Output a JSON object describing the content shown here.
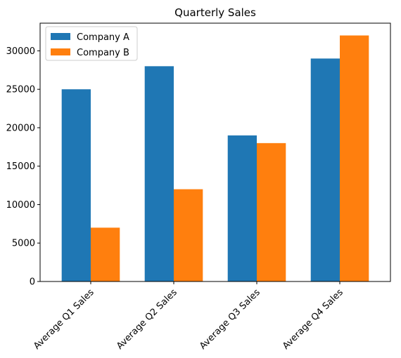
{
  "chart_data": {
    "type": "bar",
    "title": "Quarterly Sales",
    "xlabel": "",
    "ylabel": "",
    "categories": [
      "Average Q1 Sales",
      "Average Q2 Sales",
      "Average Q3 Sales",
      "Average Q4 Sales"
    ],
    "series": [
      {
        "name": "Company A",
        "values": [
          25000,
          28000,
          19000,
          29000
        ],
        "color": "#1f77b4"
      },
      {
        "name": "Company B",
        "values": [
          7000,
          12000,
          18000,
          32000
        ],
        "color": "#ff7f0e"
      }
    ],
    "ylim": [
      0,
      33600
    ],
    "yticks": [
      0,
      5000,
      10000,
      15000,
      20000,
      25000,
      30000
    ],
    "grid": false,
    "legend_position": "top-left",
    "xtick_rotation": 45
  }
}
